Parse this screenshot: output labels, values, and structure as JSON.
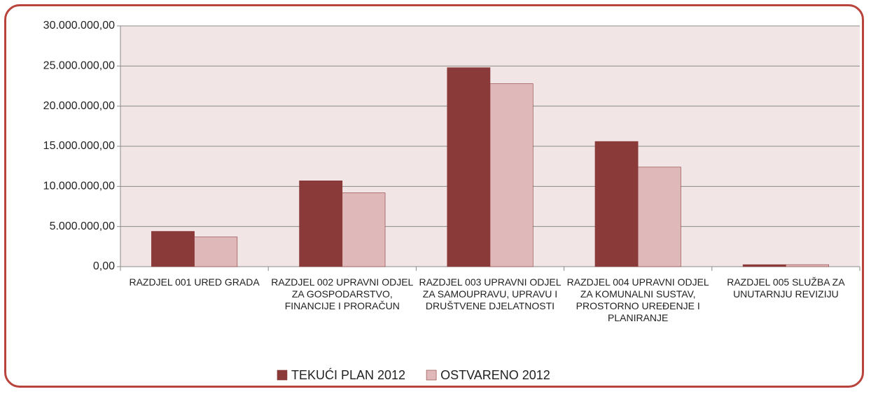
{
  "chart_data": {
    "type": "bar",
    "categories": [
      "RAZDJEL 001 URED GRADA",
      "RAZDJEL 002 UPRAVNI ODJEL ZA GOSPODARSTVO, FINANCIJE I PRORAČUN",
      "RAZDJEL 003 UPRAVNI ODJEL ZA SAMOUPRAVU, UPRAVU I DRUŠTVENE DJELATNOSTI",
      "RAZDJEL 004 UPRAVNI ODJEL ZA KOMUNALNI SUSTAV, PROSTORNO UREĐENJE I PLANIRANJE",
      "RAZDJEL 005 SLUŽBA ZA UNUTARNJU REVIZIJU"
    ],
    "series": [
      {
        "name": "TEKUĆI PLAN 2012",
        "color": "#8b3a3a",
        "values": [
          4400000,
          10700000,
          24800000,
          15600000,
          250000
        ]
      },
      {
        "name": "OSTVARENO  2012",
        "color": "#dfb9b9",
        "values": [
          3700000,
          9200000,
          22800000,
          12400000,
          250000
        ]
      }
    ],
    "ylim": [
      0,
      30000000
    ],
    "yticks": [
      {
        "value": 0,
        "label": "0,00"
      },
      {
        "value": 5000000,
        "label": "5.000.000,00"
      },
      {
        "value": 10000000,
        "label": "10.000.000,00"
      },
      {
        "value": 15000000,
        "label": "15.000.000,00"
      },
      {
        "value": 20000000,
        "label": "20.000.000,00"
      },
      {
        "value": 25000000,
        "label": "25.000.000,00"
      },
      {
        "value": 30000000,
        "label": "30.000.000,00"
      }
    ],
    "grid": true,
    "legend": "bottom"
  }
}
